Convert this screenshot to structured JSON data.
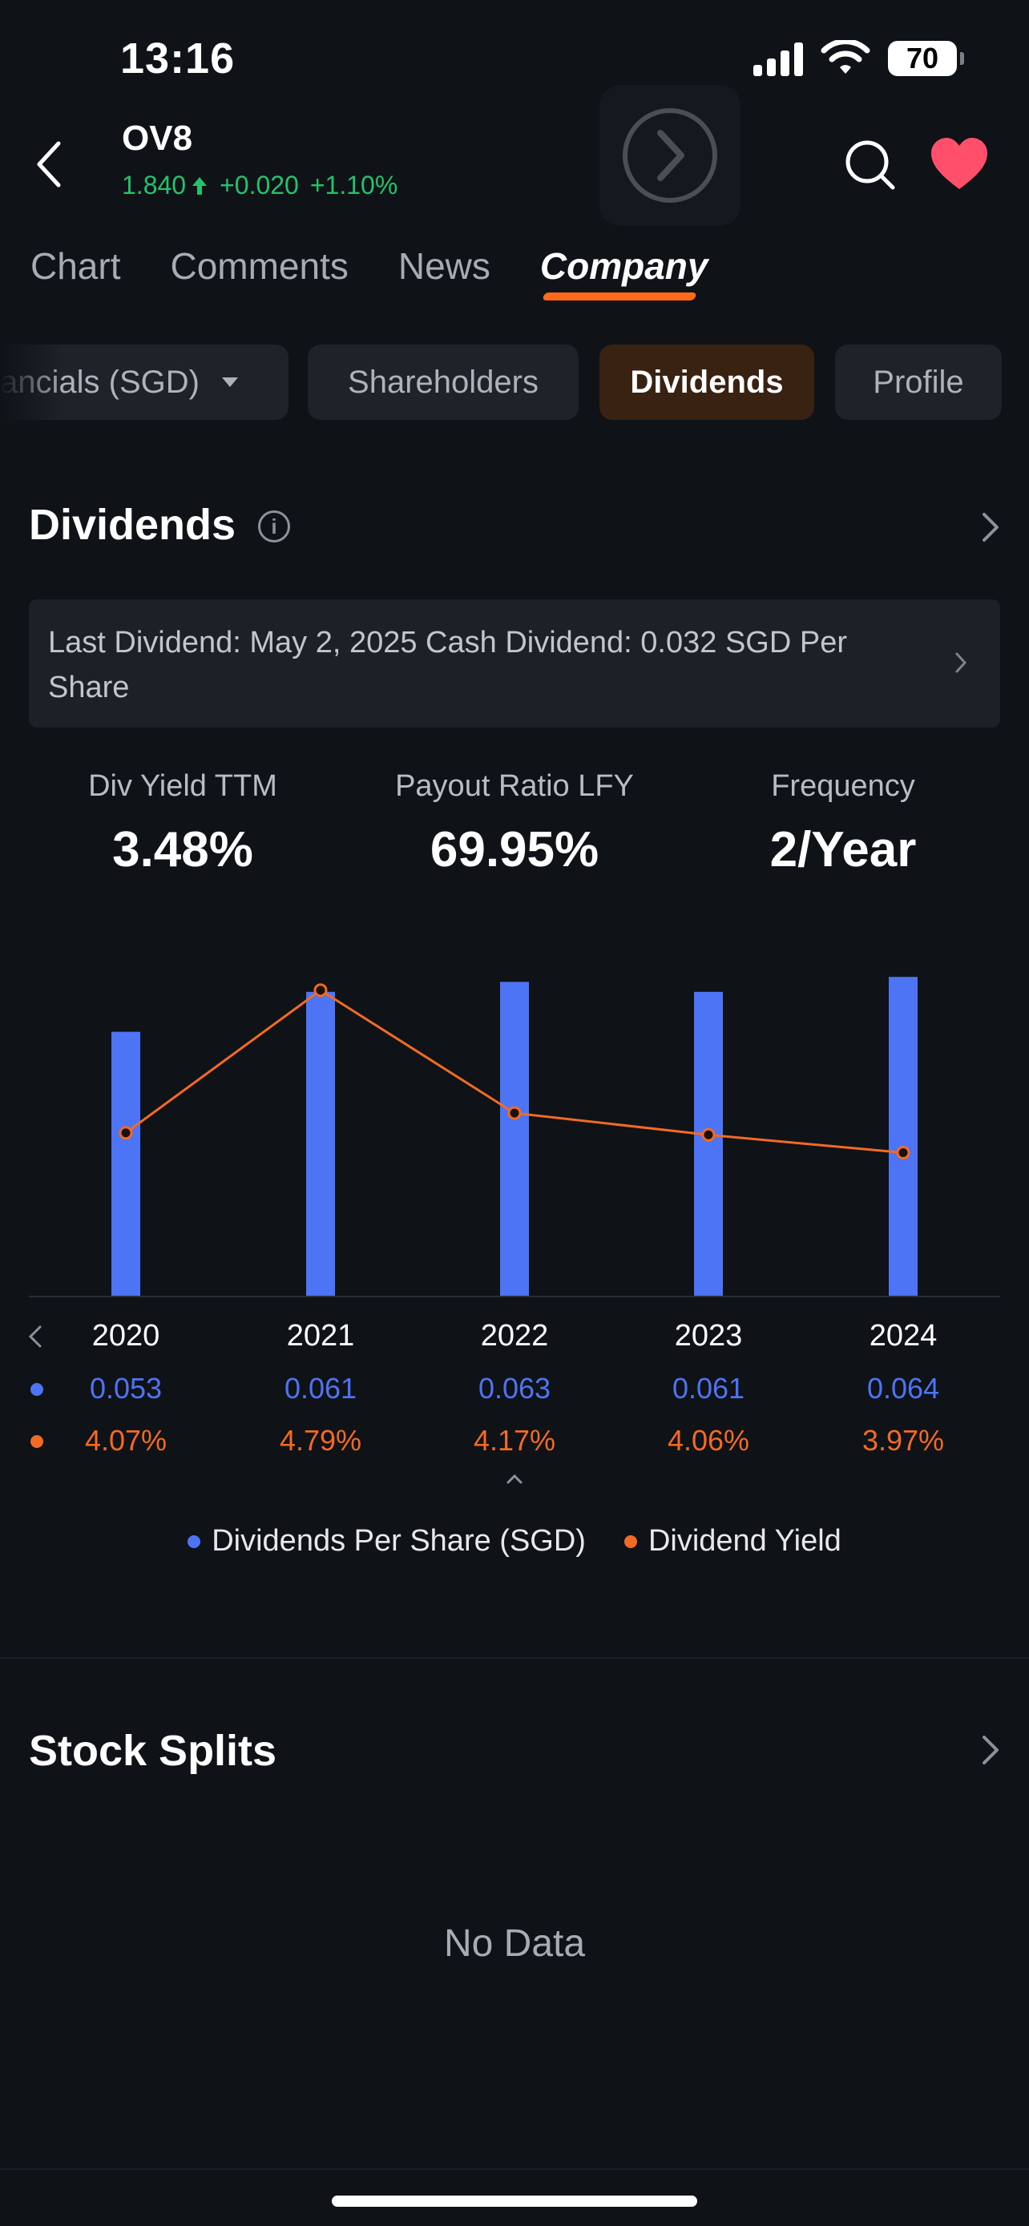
{
  "status_bar": {
    "time": "13:16",
    "battery": "70"
  },
  "header": {
    "ticker": "OV8",
    "price": "1.840",
    "change": "+0.020",
    "change_pct": "+1.10%",
    "icons": [
      "back-chevron-icon",
      "forward-arrow-icon",
      "search-icon",
      "heart-icon"
    ]
  },
  "tabs": [
    "Chart",
    "Comments",
    "News",
    "Company"
  ],
  "subtabs": [
    "ancials (SGD)",
    "Shareholders",
    "Dividends",
    "Profile"
  ],
  "dividends": {
    "title": "Dividends",
    "info_icon": "i",
    "last_dividend": "Last Dividend: May 2, 2025 Cash Dividend: 0.032 SGD Per Share",
    "stats": [
      {
        "label": "Div Yield TTM",
        "value": "3.48%"
      },
      {
        "label": "Payout Ratio LFY",
        "value": "69.95%"
      },
      {
        "label": "Frequency",
        "value": "2/Year"
      }
    ]
  },
  "chart_data": {
    "type": "bar",
    "categories": [
      "2020",
      "2021",
      "2022",
      "2023",
      "2024"
    ],
    "series": [
      {
        "name": "Dividends Per Share (SGD)",
        "type": "bar",
        "values": [
          0.053,
          0.061,
          0.063,
          0.061,
          0.064
        ],
        "labels": [
          "0.053",
          "0.061",
          "0.063",
          "0.061",
          "0.064"
        ],
        "color": "#4d74f5"
      },
      {
        "name": "Dividend Yield",
        "type": "line",
        "values": [
          4.07,
          4.79,
          4.17,
          4.06,
          3.97
        ],
        "labels": [
          "4.07%",
          "4.79%",
          "4.17%",
          "4.06%",
          "3.97%"
        ],
        "color": "#f26a24"
      }
    ],
    "legend": "bottom"
  },
  "stock_splits": {
    "title": "Stock Splits",
    "empty_text": "No Data"
  }
}
